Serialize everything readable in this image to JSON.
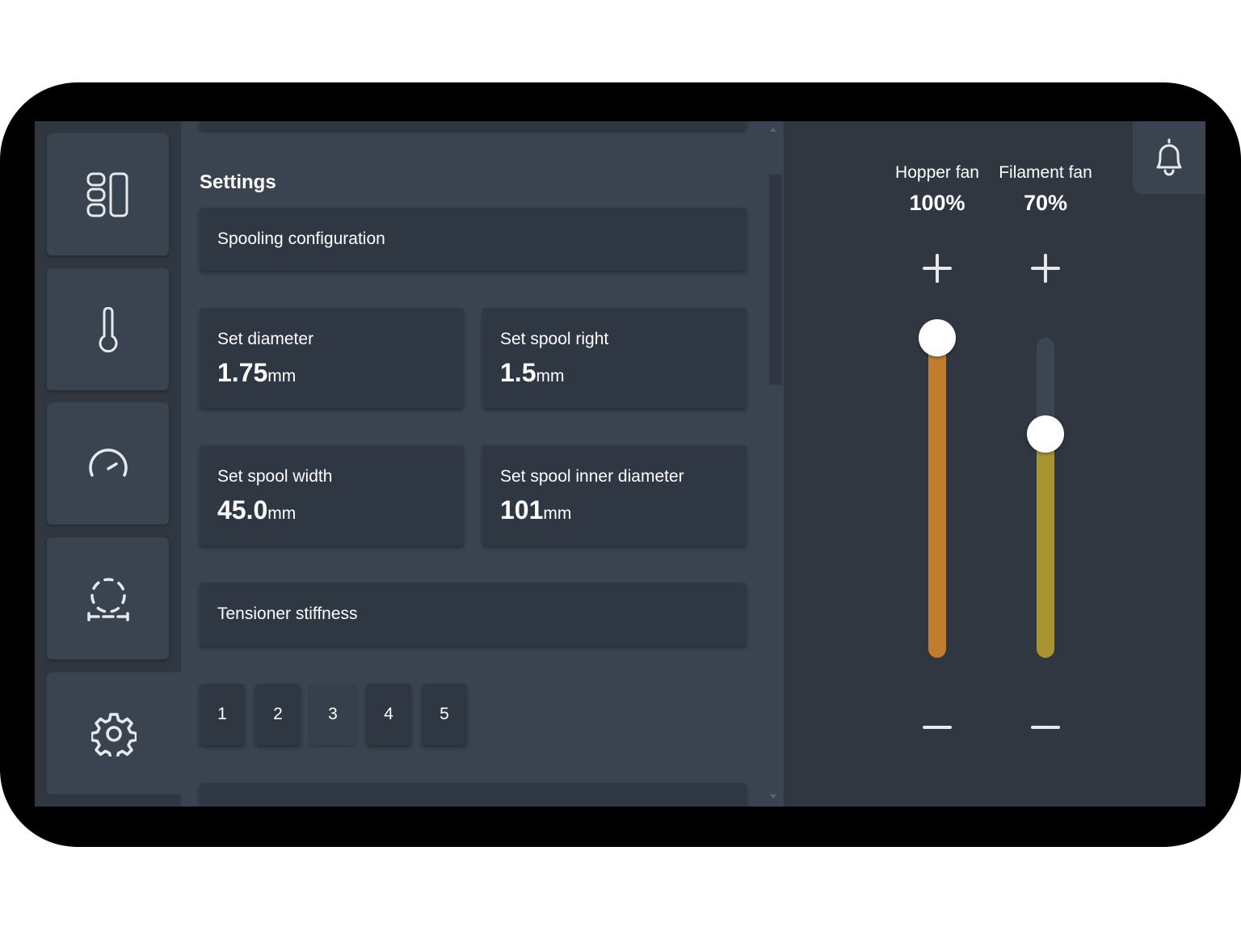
{
  "nav": {
    "items": [
      {
        "icon": "dashboard-icon",
        "active": false
      },
      {
        "icon": "thermometer-icon",
        "active": false
      },
      {
        "icon": "gauge-icon",
        "active": false
      },
      {
        "icon": "spool-dashed-icon",
        "active": false
      },
      {
        "icon": "gear-icon",
        "active": true
      }
    ]
  },
  "settings": {
    "title": "Settings",
    "spooling_configuration": "Spooling configuration",
    "diameter": {
      "label": "Set diameter",
      "value": "1.75",
      "unit": "mm"
    },
    "spool_right": {
      "label": "Set spool right",
      "value": "1.5",
      "unit": "mm"
    },
    "spool_width": {
      "label": "Set spool width",
      "value": "45.0",
      "unit": "mm"
    },
    "spool_inner_diameter": {
      "label": "Set spool inner diameter",
      "value": "101",
      "unit": "mm"
    },
    "tensioner_stiffness": "Tensioner stiffness",
    "stiffness_options": [
      "1",
      "2",
      "3",
      "4",
      "5"
    ],
    "stiffness_selected": "3"
  },
  "fans": {
    "hopper": {
      "label": "Hopper fan",
      "value": "100%",
      "level": 1.0,
      "color": "#c17d2e"
    },
    "filament": {
      "label": "Filament fan",
      "value": "70%",
      "level": 0.7,
      "color": "#a89430"
    }
  },
  "colors": {
    "background": "#3a4451",
    "panel": "#303741",
    "card": "#2f3742",
    "text": "#ffffff"
  }
}
